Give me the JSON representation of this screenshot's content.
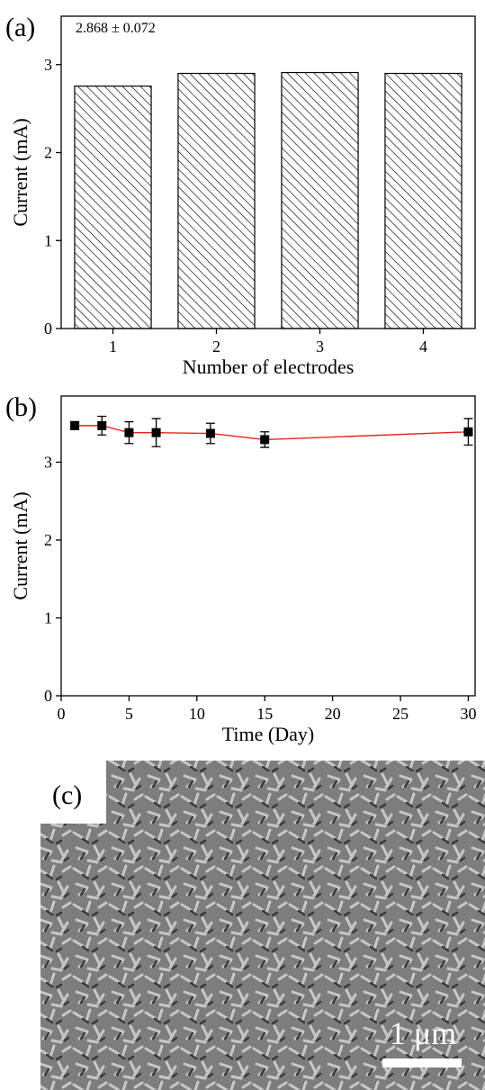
{
  "chart_data": [
    {
      "type": "bar",
      "panel_label": "(a)",
      "annotation": "2.868 ± 0.072",
      "x_label": "Number of electrodes",
      "y_label": "Current (mA)",
      "categories": [
        "1",
        "2",
        "3",
        "4"
      ],
      "values": [
        2.755,
        2.9,
        2.91,
        2.9
      ],
      "color": "#000000",
      "ylim": [
        0,
        3.55
      ],
      "yticks": [
        0,
        1,
        2,
        3
      ]
    },
    {
      "type": "line",
      "panel_label": "(b)",
      "x_label": "Time (Day)",
      "y_label": "Current (mA)",
      "x": [
        1,
        3,
        5,
        7,
        11,
        15,
        30
      ],
      "series": [
        {
          "color": "#e8231f",
          "marker_color": "#000000",
          "values": [
            3.47,
            3.47,
            3.38,
            3.38,
            3.37,
            3.29,
            3.39
          ],
          "errors": [
            0.05,
            0.12,
            0.14,
            0.18,
            0.13,
            0.1,
            0.17
          ]
        }
      ],
      "xlim": [
        0,
        30.5
      ],
      "xticks": [
        0,
        5,
        10,
        15,
        20,
        25,
        30
      ],
      "ylim": [
        0,
        3.85
      ],
      "yticks": [
        0,
        1,
        2,
        3
      ]
    }
  ],
  "image_panel": {
    "panel_label": "(c)",
    "scale_bar": "1 μm"
  }
}
